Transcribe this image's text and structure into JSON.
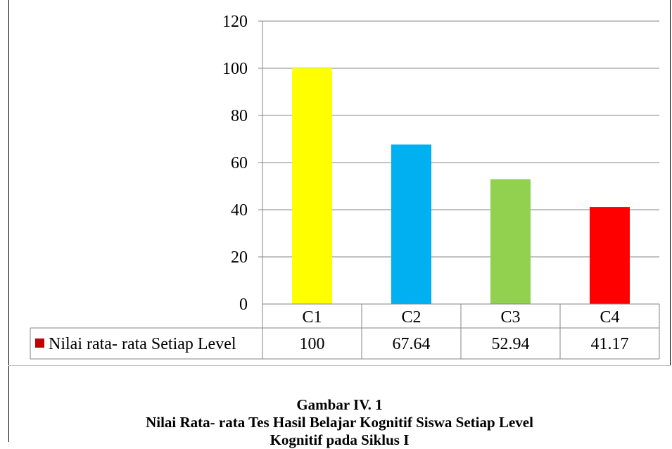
{
  "chart_data": {
    "type": "bar",
    "categories": [
      "C1",
      "C2",
      "C3",
      "C4"
    ],
    "series": [
      {
        "name": "Nilai rata- rata Setiap Level",
        "values": [
          100,
          67.64,
          52.94,
          41.17
        ]
      }
    ],
    "value_labels": [
      "100",
      "67.64",
      "52.94",
      "41.17"
    ],
    "bar_colors": [
      "#ffff00",
      "#00b0f0",
      "#92d050",
      "#ff0000"
    ],
    "legend_color": "#c00000",
    "ylim": [
      0,
      120
    ],
    "yticks": [
      0,
      20,
      40,
      60,
      80,
      100,
      120
    ],
    "grid": true,
    "data_table": true
  },
  "caption": {
    "line1": "Gambar  IV. 1",
    "line2": "Nilai Rata- rata Tes Hasil Belajar Kognitif Siswa Setiap Level",
    "line3": "Kognitif pada Siklus I"
  }
}
